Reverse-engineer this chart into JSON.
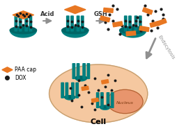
{
  "bg_color": "#ffffff",
  "teal_color": "#008080",
  "teal_dark": "#006666",
  "orange_color": "#E87722",
  "orange_light": "#F0A050",
  "dox_color": "#1a1a1a",
  "arrow_color": "#909090",
  "cell_color": "#F5C8A0",
  "nucleus_color": "#E8956D",
  "title": "Cell",
  "label_paa": "PAA cap",
  "label_dox": "DOX",
  "label_acid": "Acid",
  "label_gsh": "GSH",
  "label_endocytosis": "Endocytosis",
  "fig_width": 2.54,
  "fig_height": 1.89,
  "dpi": 100
}
